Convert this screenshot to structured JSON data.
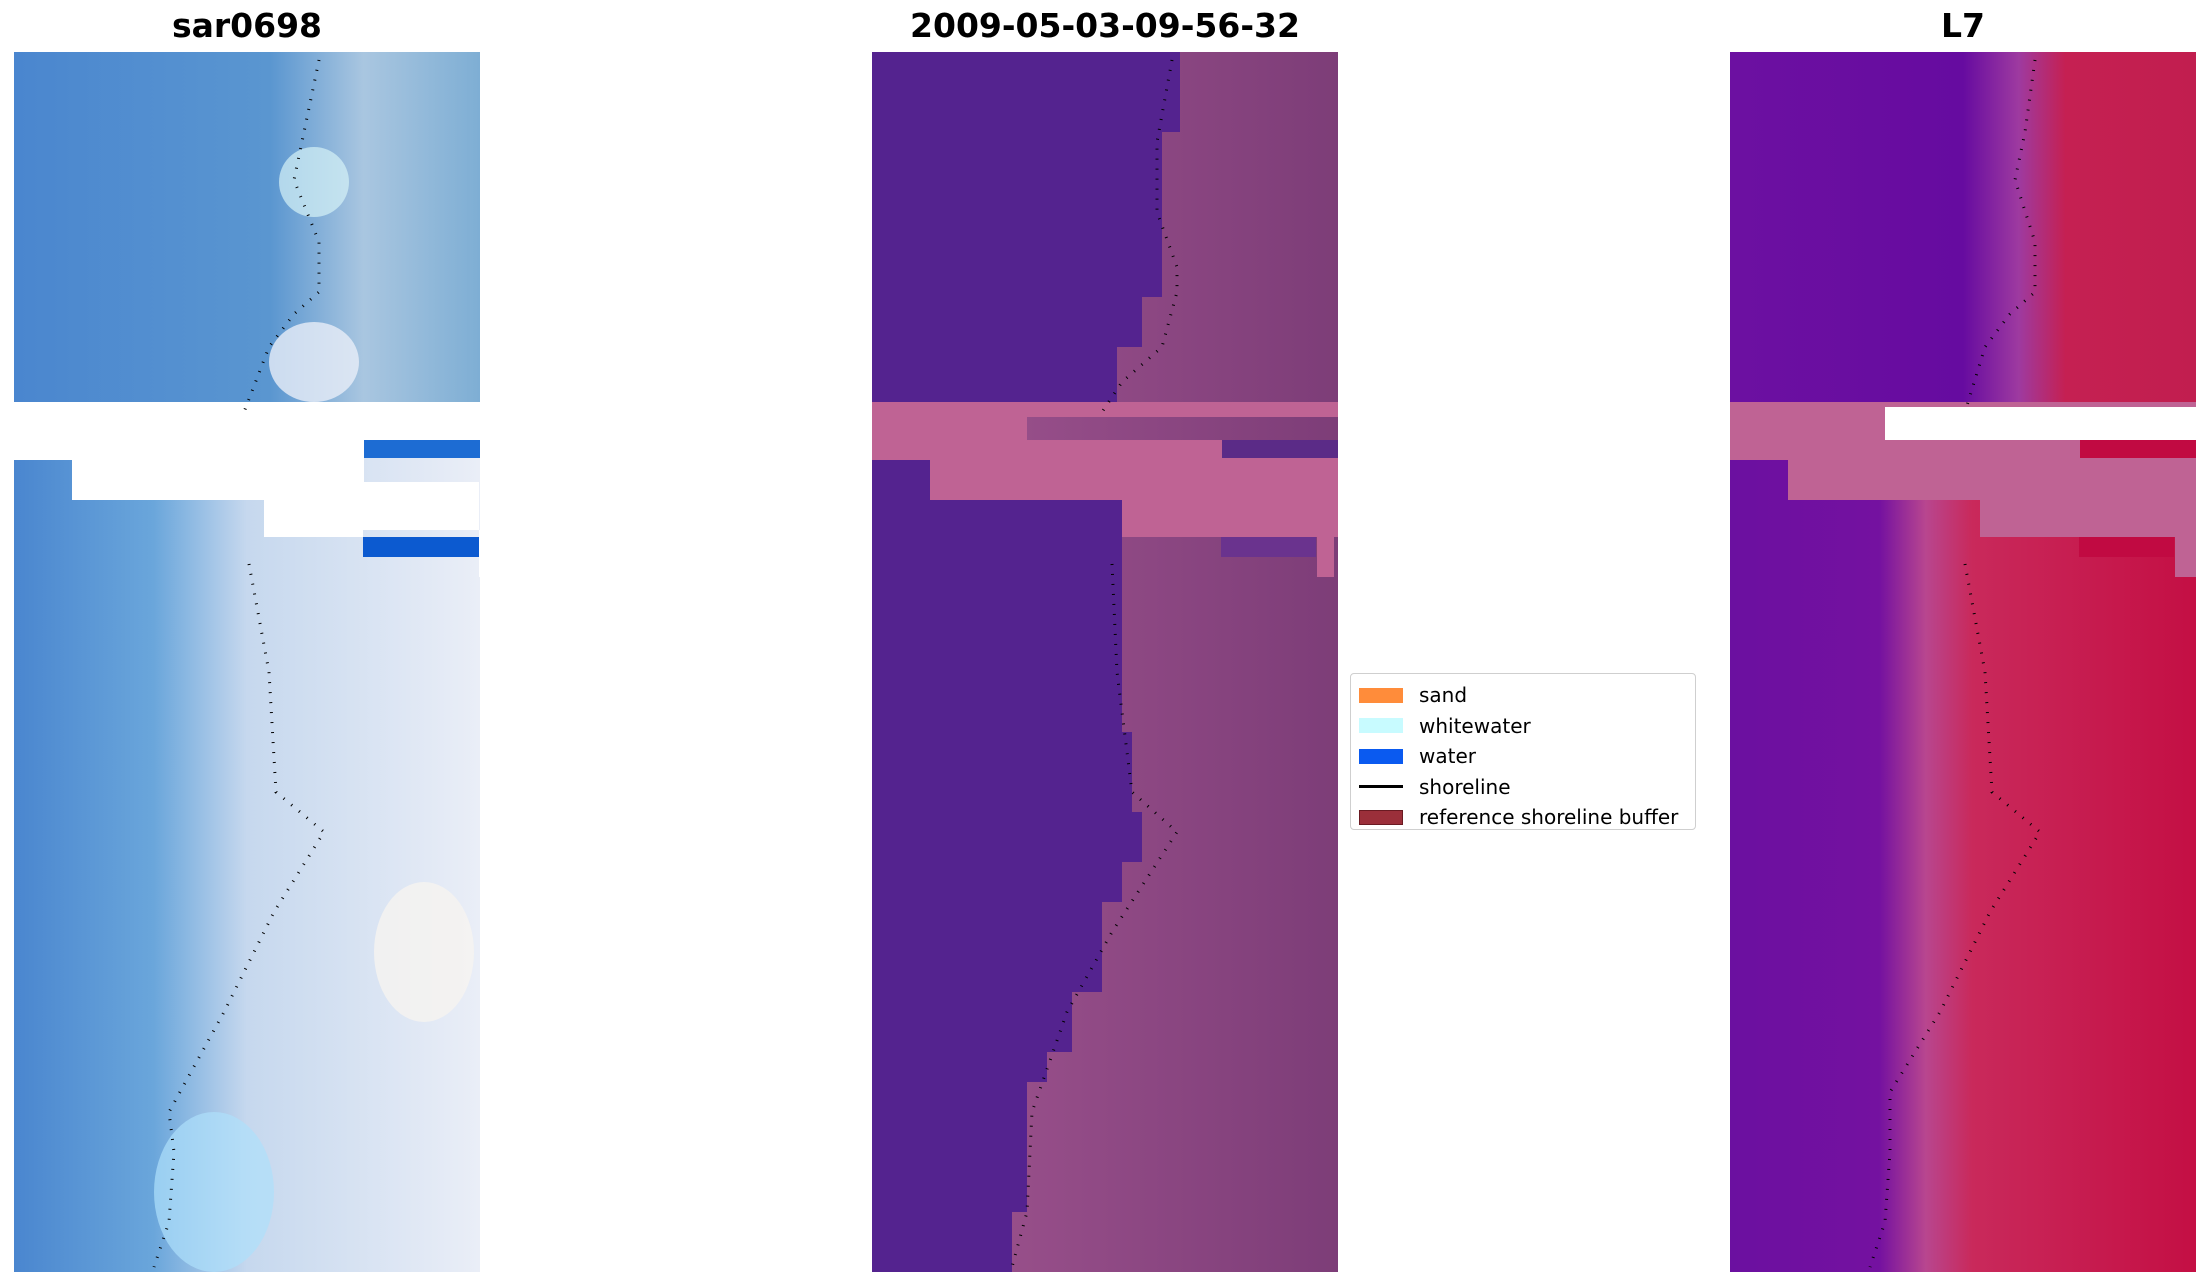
{
  "figure": {
    "panels": [
      {
        "id": "rgb",
        "title": "sar0698"
      },
      {
        "id": "classified",
        "title": "2009-05-03-09-56-32"
      },
      {
        "id": "index",
        "title": "L7"
      }
    ]
  },
  "legend": {
    "items": [
      {
        "label": "sand",
        "type": "patch",
        "color": "#ff8c3a"
      },
      {
        "label": "whitewater",
        "type": "patch",
        "color": "#c8fbff"
      },
      {
        "label": "water",
        "type": "patch",
        "color": "#0a5af0"
      },
      {
        "label": "shoreline",
        "type": "line",
        "color": "#000000"
      },
      {
        "label": "reference shoreline buffer",
        "type": "patch",
        "color": "#9b2f3a"
      }
    ]
  },
  "colors": {
    "rgb_water": "#4c8ad0",
    "rgb_surf": "#c9dcec",
    "classified_water": "#54238f",
    "classified_land": "#9b4c87",
    "nodata_pink": "#bf6394",
    "index_low": "#6a0fa0",
    "index_high": "#c71f4c",
    "nodata_white": "#ffffff"
  }
}
